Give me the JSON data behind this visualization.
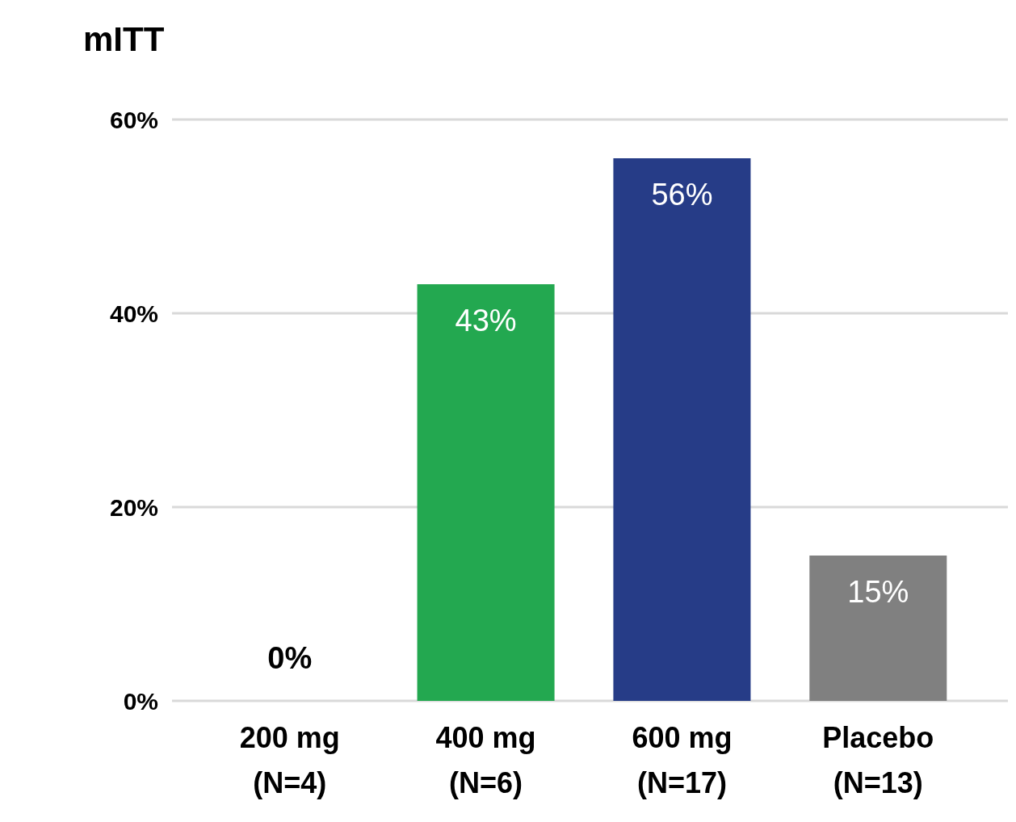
{
  "chart_data": {
    "type": "bar",
    "title": "mITT",
    "categories": [
      "200 mg\n(N=4)",
      "400 mg\n(N=6)",
      "600 mg\n(N=17)",
      "Placebo\n(N=13)"
    ],
    "values": [
      0,
      43,
      56,
      15
    ],
    "colors": [
      "#23a850",
      "#23a850",
      "#263c87",
      "#808080"
    ],
    "value_labels": [
      "0%",
      "43%",
      "56%",
      "15%"
    ],
    "ylim": [
      0,
      60
    ],
    "yticks": [
      {
        "value": 0,
        "label": "0%"
      },
      {
        "value": 20,
        "label": "20%"
      },
      {
        "value": 40,
        "label": "40%"
      },
      {
        "value": 60,
        "label": "60%"
      }
    ],
    "grid": "y"
  }
}
